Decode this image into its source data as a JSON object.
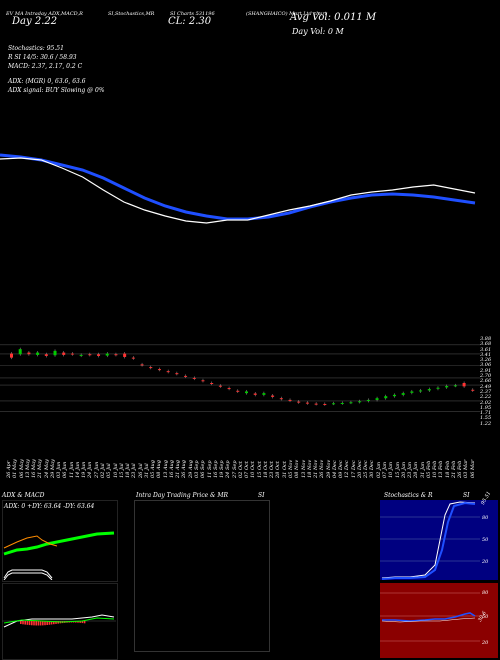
{
  "header": {
    "row1_left": "EV MA Intraday ADX,MACD,R",
    "row1_mid": "SI,Stochastics,MR",
    "row1_mid2": "SI Charts 531196",
    "row1_right": "(SHANGHAICO) Mart Ltd chart",
    "day_label": "Day",
    "day_value": "2.22",
    "cl_label": "CL:",
    "cl_value": "2.30",
    "avg_vol": "Avg Vol: 0.011 M",
    "day_vol": "Day Vol: 0   M"
  },
  "indicators": {
    "stochastics": "Stochastics: 95.51",
    "r_line": "R          SI 14/5: 30.6  / 58.93",
    "macd": "MACD: 2.37, 2.17, 0.2  C",
    "adx": "ADX:                              (MGR) 0, 63.6, 63.6",
    "adx_signal": "ADX  signal:                             BUY Slowing @ 0%"
  },
  "price_axis": [
    "3.88",
    "3.68",
    "3.61",
    "3.41",
    "3.26",
    "3.06",
    "2.91",
    "2.70",
    "2.66",
    "2.49",
    "2.37",
    "2.22",
    "2.02",
    "1.95",
    "1.71",
    "1.55",
    "1.22"
  ],
  "date_axis": [
    "26 Apr",
    "01 May",
    "06 May",
    "13 May",
    "16 May",
    "21 May",
    "24 May",
    "29 May",
    "03 Jun",
    "06 Jun",
    "11 Jun",
    "14 Jun",
    "19 Jun",
    "24 Jun",
    "27 Jun",
    "02 Jul",
    "05 Jul",
    "10 Jul",
    "15 Jul",
    "18 Jul",
    "23 Jul",
    "26 Jul",
    "31 Jul",
    "05 Aug",
    "08 Aug",
    "13 Aug",
    "16 Aug",
    "21 Aug",
    "26 Aug",
    "29 Aug",
    "03 Sep",
    "06 Sep",
    "11 Sep",
    "16 Sep",
    "19 Sep",
    "24 Sep",
    "27 Sep",
    "02 Oct",
    "07 Oct",
    "10 Oct",
    "15 Oct",
    "18 Oct",
    "23 Oct",
    "28 Oct",
    "31 Oct",
    "05 Nov",
    "08 Nov",
    "13 Nov",
    "18 Nov",
    "21 Nov",
    "26 Nov",
    "29 Nov",
    "04 Dec",
    "09 Dec",
    "12 Dec",
    "17 Dec",
    "20 Dec",
    "25 Dec",
    "30 Dec",
    "02 Jan",
    "07 Jan",
    "10 Jan",
    "15 Jan",
    "20 Jan",
    "23 Jan",
    "28 Jan",
    "31 Jan",
    "05 Feb",
    "10 Feb",
    "13 Feb",
    "18 Feb",
    "21 Feb",
    "26 Feb",
    "03 Mar",
    "06 Mar"
  ],
  "panels": {
    "adx_title": "ADX  & MACD",
    "adx_readout": "ADX: 0  +DY: 63.64  -DY: 63.64",
    "intraday_title": "Intra  Day Trading Price  & MR",
    "intraday_si": "SI",
    "stoch_title": "Stochastics & R",
    "stoch_si": "SI",
    "stoch_value": "95.51",
    "stoch_levels": [
      "80",
      "50",
      "20"
    ],
    "rsi_levels": [
      "80",
      "50",
      "20"
    ],
    "rsi_value": "30.6"
  },
  "colors": {
    "ma_blue": "#1f4fff",
    "price_white": "#ffffff",
    "candle_up": "#00cc00",
    "candle_down": "#ff3333",
    "adx_green": "#00ff00",
    "adx_orange": "#ff8c00",
    "stoch_bg": "#000080",
    "rsi_bg": "#8b0000"
  },
  "chart_data": {
    "type": "line",
    "series": [
      {
        "values": [
          2.95,
          2.93,
          2.9,
          2.85,
          2.8,
          2.72,
          2.62,
          2.52,
          2.44,
          2.38,
          2.34,
          2.31,
          2.31,
          2.33,
          2.37,
          2.43,
          2.48,
          2.52,
          2.55,
          2.56,
          2.55,
          2.53,
          2.5,
          2.47
        ]
      },
      {
        "values": [
          2.91,
          2.92,
          2.9,
          2.82,
          2.73,
          2.6,
          2.48,
          2.4,
          2.34,
          2.29,
          2.27,
          2.3,
          2.3,
          2.35,
          2.4,
          2.44,
          2.49,
          2.55,
          2.58,
          2.6,
          2.63,
          2.65,
          2.61,
          2.57
        ]
      }
    ],
    "candles": [
      {
        "o": 3.42,
        "c": 3.3
      },
      {
        "o": 3.4,
        "c": 3.55
      },
      {
        "o": 3.45,
        "c": 3.4
      },
      {
        "o": 3.38,
        "c": 3.45
      },
      {
        "o": 3.4,
        "c": 3.35
      },
      {
        "o": 3.37,
        "c": 3.5
      },
      {
        "o": 3.45,
        "c": 3.38
      },
      {
        "o": 3.42,
        "c": 3.4
      },
      {
        "o": 3.36,
        "c": 3.38
      },
      {
        "o": 3.4,
        "c": 3.38
      },
      {
        "o": 3.4,
        "c": 3.35
      },
      {
        "o": 3.36,
        "c": 3.42
      },
      {
        "o": 3.4,
        "c": 3.38
      },
      {
        "o": 3.42,
        "c": 3.32
      },
      {
        "o": 3.3,
        "c": 3.28
      },
      {
        "o": 3.1,
        "c": 3.08
      },
      {
        "o": 3.02,
        "c": 3.0
      },
      {
        "o": 2.96,
        "c": 2.94
      },
      {
        "o": 2.9,
        "c": 2.88
      },
      {
        "o": 2.84,
        "c": 2.82
      },
      {
        "o": 2.76,
        "c": 2.74
      },
      {
        "o": 2.7,
        "c": 2.68
      },
      {
        "o": 2.63,
        "c": 2.61
      },
      {
        "o": 2.55,
        "c": 2.53
      },
      {
        "o": 2.47,
        "c": 2.45
      },
      {
        "o": 2.4,
        "c": 2.38
      },
      {
        "o": 2.32,
        "c": 2.3
      },
      {
        "o": 2.25,
        "c": 2.3
      },
      {
        "o": 2.24,
        "c": 2.2
      },
      {
        "o": 2.2,
        "c": 2.25
      },
      {
        "o": 2.18,
        "c": 2.14
      },
      {
        "o": 2.1,
        "c": 2.08
      },
      {
        "o": 2.05,
        "c": 2.03
      },
      {
        "o": 2.0,
        "c": 1.98
      },
      {
        "o": 1.97,
        "c": 1.95
      },
      {
        "o": 1.94,
        "c": 1.93
      },
      {
        "o": 1.93,
        "c": 1.92
      },
      {
        "o": 1.94,
        "c": 1.95
      },
      {
        "o": 1.95,
        "c": 1.96
      },
      {
        "o": 1.97,
        "c": 1.98
      },
      {
        "o": 1.99,
        "c": 2.01
      },
      {
        "o": 2.02,
        "c": 2.05
      },
      {
        "o": 2.05,
        "c": 2.1
      },
      {
        "o": 2.1,
        "c": 2.16
      },
      {
        "o": 2.16,
        "c": 2.2
      },
      {
        "o": 2.2,
        "c": 2.25
      },
      {
        "o": 2.26,
        "c": 2.3
      },
      {
        "o": 2.3,
        "c": 2.33
      },
      {
        "o": 2.33,
        "c": 2.37
      },
      {
        "o": 2.38,
        "c": 2.41
      },
      {
        "o": 2.42,
        "c": 2.46
      },
      {
        "o": 2.47,
        "c": 2.48
      },
      {
        "o": 2.55,
        "c": 2.45
      },
      {
        "o": 2.35,
        "c": 2.33
      }
    ],
    "ylim": [
      1.22,
      3.88
    ]
  }
}
